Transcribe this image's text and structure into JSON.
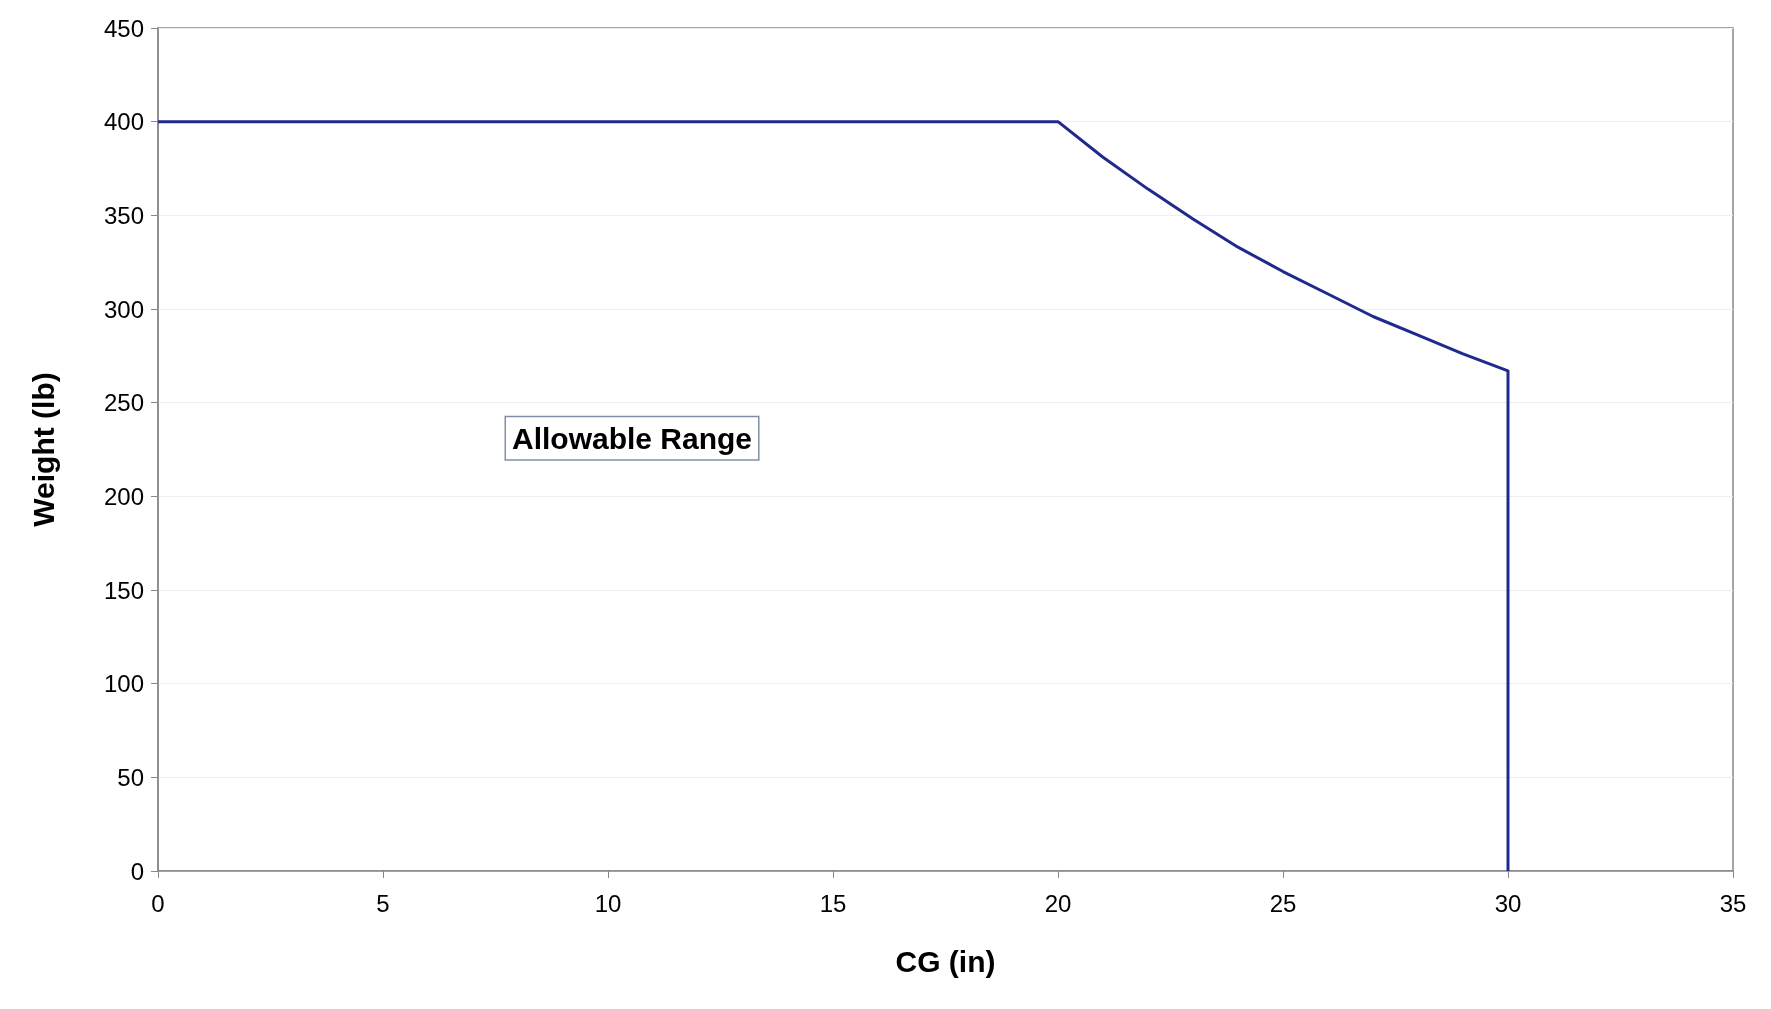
{
  "chart_data": {
    "type": "line",
    "xlabel": "CG (in)",
    "ylabel": "Weight (lb)",
    "annotations": [
      "Allowable Range"
    ],
    "series": [
      {
        "color": "#1f2a8c",
        "x": [
          0,
          20,
          21,
          22,
          23,
          24,
          25,
          26,
          27,
          28,
          29,
          30,
          30
        ],
        "values": [
          400,
          400,
          381,
          364,
          348,
          333,
          320,
          308,
          296,
          286,
          276,
          267,
          0
        ]
      }
    ],
    "xlim": [
      0,
      35
    ],
    "xticks": [
      0,
      5,
      10,
      15,
      20,
      25,
      30,
      35
    ],
    "ylim": [
      0,
      450
    ],
    "yticks": [
      0,
      50,
      100,
      150,
      200,
      250,
      300,
      350,
      400,
      450
    ],
    "grid": "y",
    "marker": "none",
    "line_style": "solid"
  }
}
